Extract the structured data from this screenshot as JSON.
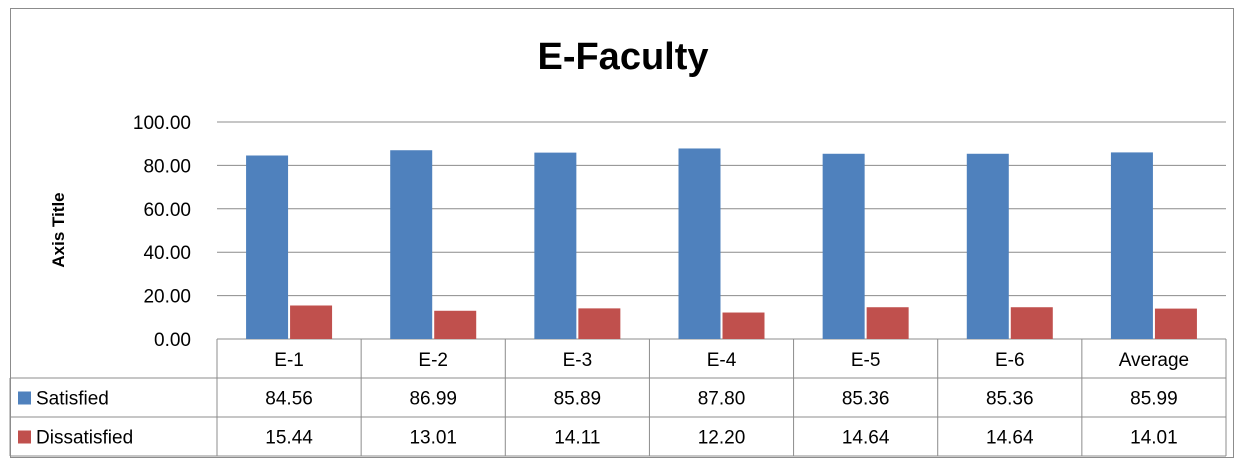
{
  "chart_data": {
    "type": "bar",
    "title": "E-Faculty",
    "xlabel": "",
    "ylabel": "Axis Title",
    "ylim": [
      0,
      100
    ],
    "y_ticks": [
      "0.00",
      "20.00",
      "40.00",
      "60.00",
      "80.00",
      "100.00"
    ],
    "categories": [
      "E-1",
      "E-2",
      "E-3",
      "E-4",
      "E-5",
      "E-6",
      "Average"
    ],
    "series": [
      {
        "name": "Satisfied",
        "color": "#4f81bd",
        "values": [
          84.56,
          86.99,
          85.89,
          87.8,
          85.36,
          85.36,
          85.99
        ],
        "labels": [
          "84.56",
          "86.99",
          "85.89",
          "87.80",
          "85.36",
          "85.36",
          "85.99"
        ]
      },
      {
        "name": "Dissatisfied",
        "color": "#c0504d",
        "values": [
          15.44,
          13.01,
          14.11,
          12.2,
          14.64,
          14.64,
          14.01
        ],
        "labels": [
          "15.44",
          "13.01",
          "14.11",
          "12.20",
          "14.64",
          "14.64",
          "14.01"
        ]
      }
    ],
    "grid": true,
    "legend": "data-table"
  }
}
